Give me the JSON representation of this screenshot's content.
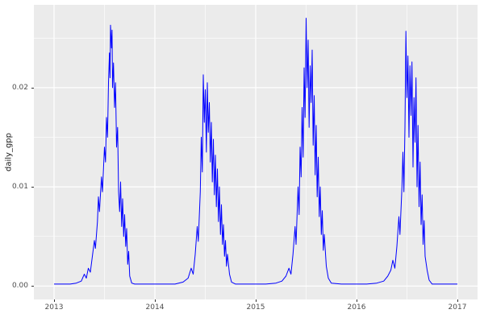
{
  "chart_data": {
    "type": "line",
    "title": "",
    "xlabel": "",
    "ylabel": "daily_gpp",
    "xlim": [
      2012.8,
      2017.2
    ],
    "ylim": [
      -0.00135,
      0.02835
    ],
    "xticks": [
      2013,
      2014,
      2015,
      2016,
      2017
    ],
    "xtick_labels": [
      "2013",
      "2014",
      "2015",
      "2016",
      "2017"
    ],
    "yticks": [
      0,
      0.01,
      0.02
    ],
    "ytick_labels": [
      "0.00",
      "0.01",
      "0.02"
    ],
    "x_minor": [
      2013.5,
      2014.5,
      2015.5,
      2016.5
    ],
    "y_minor": [
      0.005,
      0.015,
      0.025
    ],
    "grid": true,
    "legend": "none",
    "theme": {
      "panel_bg": "#EBEBEB",
      "grid_color": "#FFFFFF",
      "tick_text_color": "#4D4D4D",
      "tick_mark_color": "#333333",
      "line_color": "#0000FF",
      "figure_bg": "#FFFFFF"
    },
    "series": [
      {
        "name": "daily_gpp",
        "points": [
          [
            2013.0,
            0.0002
          ],
          [
            2013.08,
            0.0002
          ],
          [
            2013.16,
            0.0002
          ],
          [
            2013.22,
            0.0003
          ],
          [
            2013.27,
            0.0005
          ],
          [
            2013.3,
            0.0012
          ],
          [
            2013.32,
            0.0008
          ],
          [
            2013.34,
            0.0018
          ],
          [
            2013.36,
            0.0014
          ],
          [
            2013.38,
            0.003
          ],
          [
            2013.4,
            0.0046
          ],
          [
            2013.41,
            0.0038
          ],
          [
            2013.43,
            0.0065
          ],
          [
            2013.44,
            0.009
          ],
          [
            2013.45,
            0.0075
          ],
          [
            2013.47,
            0.011
          ],
          [
            2013.48,
            0.0095
          ],
          [
            2013.5,
            0.014
          ],
          [
            2013.51,
            0.0125
          ],
          [
            2013.52,
            0.017
          ],
          [
            2013.53,
            0.015
          ],
          [
            2013.54,
            0.0205
          ],
          [
            2013.55,
            0.0235
          ],
          [
            2013.555,
            0.021
          ],
          [
            2013.56,
            0.0263
          ],
          [
            2013.57,
            0.024
          ],
          [
            2013.575,
            0.0258
          ],
          [
            2013.58,
            0.02
          ],
          [
            2013.59,
            0.0225
          ],
          [
            2013.6,
            0.018
          ],
          [
            2013.61,
            0.0205
          ],
          [
            2013.62,
            0.014
          ],
          [
            2013.63,
            0.016
          ],
          [
            2013.64,
            0.0095
          ],
          [
            2013.65,
            0.0075
          ],
          [
            2013.66,
            0.0105
          ],
          [
            2013.67,
            0.006
          ],
          [
            2013.68,
            0.0088
          ],
          [
            2013.69,
            0.005
          ],
          [
            2013.7,
            0.0072
          ],
          [
            2013.71,
            0.004
          ],
          [
            2013.72,
            0.0058
          ],
          [
            2013.73,
            0.0022
          ],
          [
            2013.74,
            0.0035
          ],
          [
            2013.75,
            0.001
          ],
          [
            2013.77,
            0.0003
          ],
          [
            2013.8,
            0.0002
          ],
          [
            2013.9,
            0.0002
          ],
          [
            2014.0,
            0.0002
          ],
          [
            2014.1,
            0.0002
          ],
          [
            2014.2,
            0.0002
          ],
          [
            2014.28,
            0.0004
          ],
          [
            2014.33,
            0.0008
          ],
          [
            2014.36,
            0.0018
          ],
          [
            2014.38,
            0.0012
          ],
          [
            2014.4,
            0.0032
          ],
          [
            2014.42,
            0.006
          ],
          [
            2014.43,
            0.0045
          ],
          [
            2014.45,
            0.0095
          ],
          [
            2014.46,
            0.015
          ],
          [
            2014.47,
            0.0115
          ],
          [
            2014.48,
            0.0213
          ],
          [
            2014.49,
            0.0165
          ],
          [
            2014.5,
            0.0198
          ],
          [
            2014.51,
            0.0135
          ],
          [
            2014.52,
            0.0205
          ],
          [
            2014.53,
            0.0155
          ],
          [
            2014.54,
            0.0185
          ],
          [
            2014.55,
            0.0125
          ],
          [
            2014.56,
            0.0165
          ],
          [
            2014.57,
            0.0105
          ],
          [
            2014.58,
            0.0148
          ],
          [
            2014.59,
            0.0092
          ],
          [
            2014.6,
            0.0132
          ],
          [
            2014.61,
            0.008
          ],
          [
            2014.62,
            0.0118
          ],
          [
            2014.63,
            0.0065
          ],
          [
            2014.64,
            0.01
          ],
          [
            2014.65,
            0.0052
          ],
          [
            2014.66,
            0.0082
          ],
          [
            2014.67,
            0.0042
          ],
          [
            2014.68,
            0.0062
          ],
          [
            2014.69,
            0.003
          ],
          [
            2014.7,
            0.0046
          ],
          [
            2014.71,
            0.002
          ],
          [
            2014.72,
            0.0032
          ],
          [
            2014.74,
            0.0012
          ],
          [
            2014.76,
            0.0004
          ],
          [
            2014.8,
            0.0002
          ],
          [
            2014.9,
            0.0002
          ],
          [
            2015.0,
            0.0002
          ],
          [
            2015.1,
            0.0002
          ],
          [
            2015.2,
            0.0003
          ],
          [
            2015.26,
            0.0005
          ],
          [
            2015.3,
            0.001
          ],
          [
            2015.33,
            0.0018
          ],
          [
            2015.35,
            0.0012
          ],
          [
            2015.37,
            0.0032
          ],
          [
            2015.39,
            0.006
          ],
          [
            2015.4,
            0.0042
          ],
          [
            2015.42,
            0.01
          ],
          [
            2015.43,
            0.0072
          ],
          [
            2015.44,
            0.014
          ],
          [
            2015.45,
            0.011
          ],
          [
            2015.46,
            0.018
          ],
          [
            2015.47,
            0.013
          ],
          [
            2015.48,
            0.022
          ],
          [
            2015.49,
            0.017
          ],
          [
            2015.5,
            0.027
          ],
          [
            2015.51,
            0.02
          ],
          [
            2015.52,
            0.0248
          ],
          [
            2015.53,
            0.016
          ],
          [
            2015.54,
            0.0222
          ],
          [
            2015.55,
            0.0185
          ],
          [
            2015.56,
            0.0238
          ],
          [
            2015.57,
            0.0142
          ],
          [
            2015.58,
            0.0192
          ],
          [
            2015.59,
            0.0112
          ],
          [
            2015.6,
            0.0162
          ],
          [
            2015.61,
            0.009
          ],
          [
            2015.62,
            0.013
          ],
          [
            2015.63,
            0.007
          ],
          [
            2015.64,
            0.01
          ],
          [
            2015.65,
            0.0052
          ],
          [
            2015.66,
            0.0076
          ],
          [
            2015.67,
            0.0036
          ],
          [
            2015.68,
            0.0052
          ],
          [
            2015.7,
            0.002
          ],
          [
            2015.72,
            0.0008
          ],
          [
            2015.75,
            0.0003
          ],
          [
            2015.85,
            0.0002
          ],
          [
            2016.0,
            0.0002
          ],
          [
            2016.1,
            0.0002
          ],
          [
            2016.2,
            0.0003
          ],
          [
            2016.27,
            0.0005
          ],
          [
            2016.31,
            0.001
          ],
          [
            2016.34,
            0.0016
          ],
          [
            2016.36,
            0.0026
          ],
          [
            2016.38,
            0.0018
          ],
          [
            2016.4,
            0.004
          ],
          [
            2016.42,
            0.007
          ],
          [
            2016.43,
            0.0052
          ],
          [
            2016.45,
            0.01
          ],
          [
            2016.46,
            0.0135
          ],
          [
            2016.47,
            0.0095
          ],
          [
            2016.48,
            0.016
          ],
          [
            2016.49,
            0.0257
          ],
          [
            2016.5,
            0.019
          ],
          [
            2016.51,
            0.0232
          ],
          [
            2016.52,
            0.015
          ],
          [
            2016.53,
            0.0222
          ],
          [
            2016.54,
            0.0172
          ],
          [
            2016.55,
            0.0226
          ],
          [
            2016.56,
            0.012
          ],
          [
            2016.57,
            0.019
          ],
          [
            2016.58,
            0.0145
          ],
          [
            2016.59,
            0.021
          ],
          [
            2016.6,
            0.01
          ],
          [
            2016.61,
            0.0162
          ],
          [
            2016.62,
            0.008
          ],
          [
            2016.63,
            0.0125
          ],
          [
            2016.64,
            0.0062
          ],
          [
            2016.65,
            0.0092
          ],
          [
            2016.66,
            0.0042
          ],
          [
            2016.67,
            0.0066
          ],
          [
            2016.68,
            0.003
          ],
          [
            2016.7,
            0.0016
          ],
          [
            2016.72,
            0.0006
          ],
          [
            2016.75,
            0.0002
          ],
          [
            2016.85,
            0.0002
          ],
          [
            2016.95,
            0.0002
          ],
          [
            2017.0,
            0.0002
          ]
        ]
      }
    ]
  }
}
